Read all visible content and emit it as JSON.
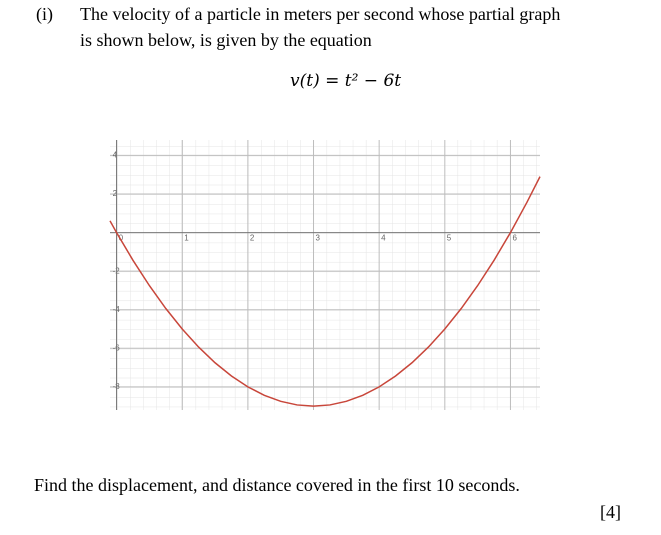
{
  "question": {
    "number": "(i)",
    "text_lines": [
      "The velocity of a particle in meters per second whose partial graph",
      "is shown below, is given by the equation"
    ],
    "equation": "v(t) = t² − 6t"
  },
  "chart_data": {
    "type": "line",
    "x": [
      -0.1,
      0,
      0.25,
      0.5,
      0.75,
      1,
      1.25,
      1.5,
      1.75,
      2,
      2.25,
      2.5,
      2.75,
      3,
      3.25,
      3.5,
      3.75,
      4,
      4.25,
      4.5,
      4.75,
      5,
      5.25,
      5.5,
      5.75,
      6,
      6.25,
      6.45
    ],
    "series": [
      {
        "color": "#c8463a",
        "values": [
          0.61,
          0,
          -1.4375,
          -2.75,
          -3.9375,
          -5,
          -5.9375,
          -6.75,
          -7.4375,
          -8,
          -8.4375,
          -8.75,
          -8.9375,
          -9,
          -8.9375,
          -8.75,
          -8.4375,
          -8,
          -7.4375,
          -6.75,
          -5.9375,
          -5,
          -3.9375,
          -2.75,
          -1.4375,
          0,
          1.5625,
          2.9
        ]
      }
    ],
    "xlim": [
      -0.1,
      6.45
    ],
    "ylim": [
      -9.2,
      4.8
    ],
    "xticks": [
      0,
      1,
      2,
      3,
      4,
      5,
      6
    ],
    "yticks": [
      -8,
      -6,
      -4,
      -2,
      2,
      4
    ],
    "grid": true
  },
  "instruction": "Find the displacement, and distance covered in the first 10 seconds.",
  "marks": "[4]"
}
